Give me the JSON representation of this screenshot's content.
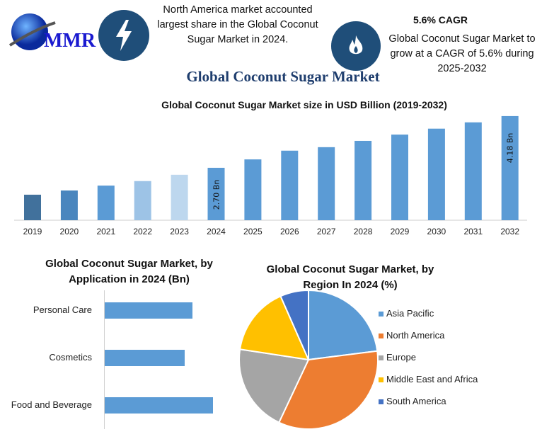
{
  "logo": {
    "text": "MMR"
  },
  "header": {
    "left_icon": "lightning-icon",
    "left_text": "North America market accounted largest share in the Global Coconut Sugar Market in 2024.",
    "right_icon": "flame-icon",
    "right_title": "5.6% CAGR",
    "right_text": "Global Coconut Sugar Market to grow at a CAGR of 5.6% during 2025-2032"
  },
  "title": "Global Coconut Sugar Market",
  "chart_data": [
    {
      "type": "bar",
      "title": "Global Coconut Sugar Market  size in USD Billion (2019-2032)",
      "categories": [
        "2019",
        "2020",
        "2021",
        "2022",
        "2023",
        "2024",
        "2025",
        "2026",
        "2027",
        "2028",
        "2029",
        "2030",
        "2031",
        "2032"
      ],
      "values": [
        1.93,
        2.05,
        2.19,
        2.32,
        2.5,
        2.7,
        2.94,
        3.19,
        3.29,
        3.47,
        3.65,
        3.82,
        4.0,
        4.18
      ],
      "data_labels": {
        "2024": "2.70 Bn",
        "2032": "4.18 Bn"
      },
      "ylim": [
        1.2,
        4.3
      ],
      "grid": false,
      "colors": [
        "#41719c",
        "#4a86be",
        "#5b9bd5",
        "#9dc3e6",
        "#bdd7ee",
        "#5b9bd5",
        "#5b9bd5",
        "#5b9bd5",
        "#5b9bd5",
        "#5b9bd5",
        "#5b9bd5",
        "#5b9bd5",
        "#5b9bd5",
        "#5b9bd5"
      ]
    },
    {
      "type": "bar",
      "orientation": "horizontal",
      "title": "Global Coconut Sugar Market, by Application in 2024 (Bn)",
      "categories": [
        "Personal Care",
        "Cosmetics",
        "Food and Beverage"
      ],
      "values": [
        0.81,
        0.74,
        1.0
      ],
      "color": "#5b9bd5"
    },
    {
      "type": "pie",
      "title": "Global Coconut Sugar Market, by Region In 2024 (%)",
      "categories": [
        "Asia Pacific",
        "North America",
        "Europe",
        "Middle East and Africa",
        "South America"
      ],
      "values": [
        23,
        34,
        20.4,
        16,
        6.6
      ],
      "colors": [
        "#5b9bd5",
        "#ed7d31",
        "#a5a5a5",
        "#ffc000",
        "#4472c4"
      ],
      "legend": "right"
    }
  ]
}
